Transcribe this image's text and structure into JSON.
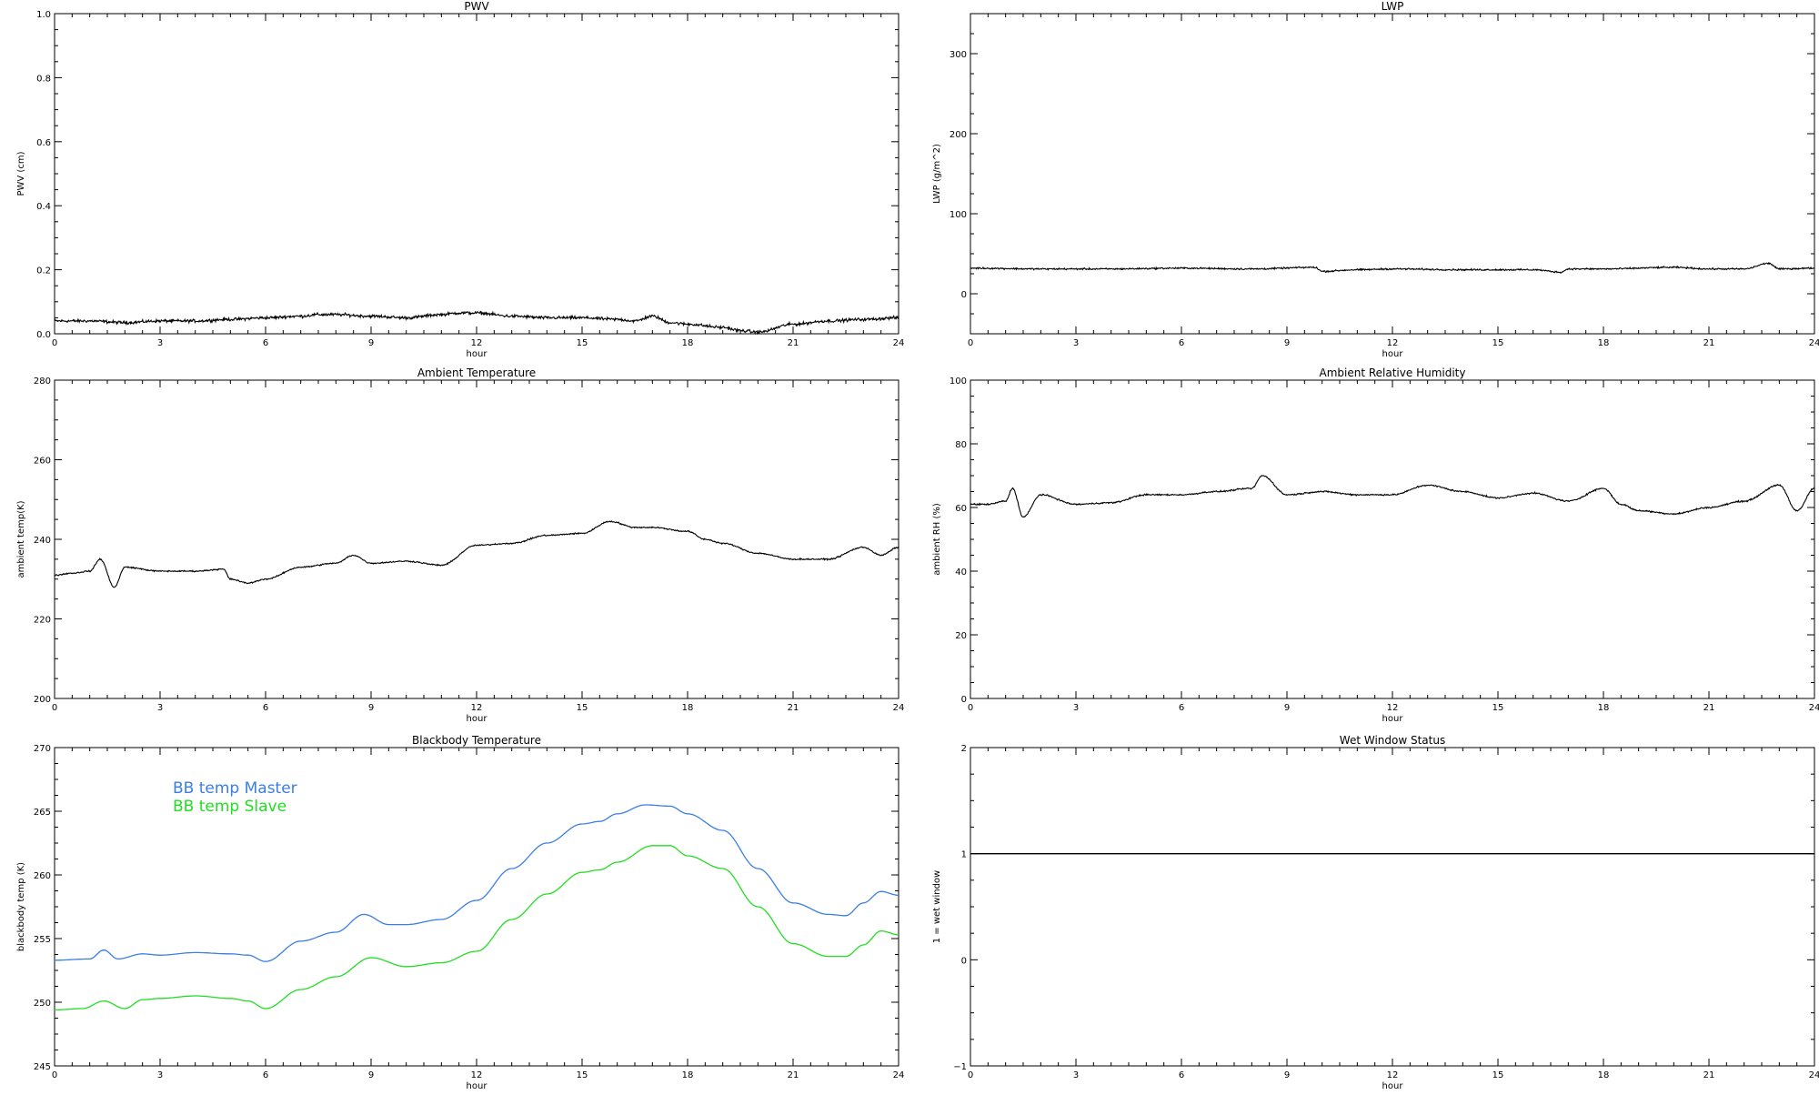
{
  "chart_data": [
    {
      "type": "line",
      "title": "PWV",
      "xlabel": "hour",
      "ylabel": "PWV (cm)",
      "xlim": [
        0,
        24
      ],
      "ylim": [
        0,
        1.0
      ],
      "xticks": [
        0,
        3,
        6,
        9,
        12,
        15,
        18,
        21,
        24
      ],
      "yticks": [
        0.0,
        0.2,
        0.4,
        0.6,
        0.8,
        1.0
      ],
      "ytick_labels": [
        "0.0",
        "0.2",
        "0.4",
        "0.6",
        "0.8",
        "1.0"
      ],
      "noise": 0.007,
      "series": [
        {
          "color": "#000000",
          "x": [
            0,
            1,
            2,
            3,
            4,
            5,
            6,
            7,
            7.5,
            8,
            9,
            10,
            11,
            11.5,
            12,
            13,
            14,
            15,
            16,
            16.5,
            17,
            17.5,
            18,
            19,
            19.5,
            20,
            21,
            22,
            23,
            24
          ],
          "y": [
            0.04,
            0.04,
            0.035,
            0.04,
            0.04,
            0.045,
            0.05,
            0.055,
            0.06,
            0.06,
            0.055,
            0.05,
            0.06,
            0.065,
            0.065,
            0.055,
            0.05,
            0.05,
            0.045,
            0.04,
            0.055,
            0.035,
            0.03,
            0.02,
            0.01,
            0.005,
            0.03,
            0.04,
            0.045,
            0.05
          ]
        }
      ]
    },
    {
      "type": "line",
      "title": "LWP",
      "xlabel": "hour",
      "ylabel": "LWP (g/m^2)",
      "xlim": [
        0,
        24
      ],
      "ylim": [
        -50,
        350
      ],
      "xticks": [
        0,
        3,
        6,
        9,
        12,
        15,
        18,
        21,
        24
      ],
      "yticks": [
        0,
        100,
        200,
        300
      ],
      "ytick_labels": [
        "0",
        "100",
        "200",
        "300"
      ],
      "noise": 1.5,
      "series": [
        {
          "color": "#000000",
          "x": [
            0,
            2,
            4,
            6,
            8,
            9.8,
            10,
            11,
            12,
            14,
            16,
            16.8,
            17,
            18,
            20,
            21,
            22,
            22.7,
            23,
            24
          ],
          "y": [
            32,
            31,
            31,
            32,
            31,
            33,
            28,
            30,
            31,
            30,
            30,
            27,
            31,
            31,
            33,
            31,
            31,
            38,
            31,
            32
          ]
        }
      ]
    },
    {
      "type": "line",
      "title": "Ambient Temperature",
      "xlabel": "hour",
      "ylabel": "ambient temp(K)",
      "xlim": [
        0,
        24
      ],
      "ylim": [
        200,
        280
      ],
      "xticks": [
        0,
        3,
        6,
        9,
        12,
        15,
        18,
        21,
        24
      ],
      "yticks": [
        200,
        220,
        240,
        260,
        280
      ],
      "ytick_labels": [
        "200",
        "220",
        "240",
        "260",
        "280"
      ],
      "noise": 0.25,
      "series": [
        {
          "color": "#000000",
          "x": [
            0,
            0.5,
            1,
            1.3,
            1.7,
            2,
            3,
            4,
            4.8,
            5,
            5.5,
            6,
            7,
            8,
            8.5,
            9,
            10,
            11,
            12,
            13,
            14,
            15,
            15.8,
            16.5,
            17,
            18,
            18.5,
            19,
            20,
            21,
            22,
            23,
            23.5,
            24
          ],
          "y": [
            231,
            231.5,
            232,
            235,
            228,
            233,
            232,
            232,
            232.5,
            230,
            229,
            230,
            233,
            234,
            236,
            234,
            234.5,
            233.5,
            238.5,
            239,
            241,
            241.5,
            244.5,
            243,
            243,
            242,
            240,
            239,
            236.5,
            235,
            235,
            238,
            236,
            238
          ]
        }
      ]
    },
    {
      "type": "line",
      "title": "Ambient Relative Humidity",
      "xlabel": "hour",
      "ylabel": "ambient RH (%)",
      "xlim": [
        0,
        24
      ],
      "ylim": [
        0,
        100
      ],
      "xticks": [
        0,
        3,
        6,
        9,
        12,
        15,
        18,
        21,
        24
      ],
      "yticks": [
        0,
        20,
        40,
        60,
        80,
        100
      ],
      "ytick_labels": [
        "0",
        "20",
        "40",
        "60",
        "80",
        "100"
      ],
      "noise": 0.35,
      "series": [
        {
          "color": "#000000",
          "x": [
            0,
            0.5,
            1,
            1.2,
            1.5,
            2,
            3,
            4,
            5,
            6,
            7,
            8,
            8.3,
            9,
            10,
            11,
            12,
            13,
            14,
            15,
            16,
            17,
            18,
            18.5,
            19,
            20,
            21,
            22,
            23,
            23.5,
            24
          ],
          "y": [
            61,
            61,
            62,
            66,
            57,
            64,
            61,
            61.5,
            64,
            64,
            65,
            66,
            70,
            64,
            65,
            64,
            64,
            67,
            65,
            63,
            64.5,
            62,
            66,
            61,
            59,
            58,
            60,
            62,
            67,
            59,
            66
          ]
        }
      ]
    },
    {
      "type": "line",
      "title": "Blackbody Temperature",
      "xlabel": "hour",
      "ylabel": "blackbody temp (K)",
      "xlim": [
        0,
        24
      ],
      "ylim": [
        245,
        270
      ],
      "xticks": [
        0,
        3,
        6,
        9,
        12,
        15,
        18,
        21,
        24
      ],
      "yticks": [
        245,
        250,
        255,
        260,
        265,
        270
      ],
      "ytick_labels": [
        "245",
        "250",
        "255",
        "260",
        "265",
        "270"
      ],
      "noise": 0,
      "legend": "top-left",
      "series": [
        {
          "name": "BB temp Master",
          "color": "#3a7ee6",
          "x": [
            0,
            1,
            1.4,
            1.8,
            2.5,
            3,
            4,
            5,
            5.5,
            6,
            7,
            8,
            8.8,
            9.5,
            10,
            11,
            12,
            13,
            14,
            15,
            15.5,
            16,
            16.8,
            17.5,
            18,
            19,
            20,
            21,
            22,
            22.5,
            23,
            23.5,
            24
          ],
          "y": [
            253.3,
            253.4,
            254.1,
            253.4,
            253.8,
            253.7,
            253.9,
            253.8,
            253.7,
            253.2,
            254.8,
            255.5,
            256.9,
            256.1,
            256.1,
            256.5,
            258.0,
            260.5,
            262.5,
            264.0,
            264.2,
            264.8,
            265.5,
            265.4,
            264.8,
            263.5,
            260.5,
            257.8,
            256.9,
            256.8,
            257.8,
            258.7,
            258.4
          ]
        },
        {
          "name": "BB temp Slave",
          "color": "#22dd22",
          "x": [
            0,
            0.8,
            1.4,
            2,
            2.5,
            3,
            4,
            5,
            5.5,
            6,
            7,
            8,
            9,
            10,
            11,
            12,
            13,
            14,
            15,
            15.5,
            16,
            17,
            17.5,
            18,
            19,
            20,
            21,
            22,
            22.5,
            23,
            23.5,
            24
          ],
          "y": [
            249.4,
            249.5,
            250.1,
            249.5,
            250.2,
            250.3,
            250.5,
            250.3,
            250.1,
            249.5,
            251.0,
            252.0,
            253.5,
            252.8,
            253.1,
            254.0,
            256.5,
            258.5,
            260.2,
            260.4,
            261.0,
            262.3,
            262.3,
            261.5,
            260.5,
            257.5,
            254.6,
            253.6,
            253.6,
            254.5,
            255.6,
            255.3
          ]
        }
      ]
    },
    {
      "type": "line",
      "title": "Wet Window Status",
      "xlabel": "hour",
      "ylabel": "1 = wet window",
      "xlim": [
        0,
        24
      ],
      "ylim": [
        -1,
        2
      ],
      "xticks": [
        0,
        3,
        6,
        9,
        12,
        15,
        18,
        21,
        24
      ],
      "yticks": [
        -1,
        0,
        1,
        2
      ],
      "ytick_labels": [
        "−1",
        "0",
        "1",
        "2"
      ],
      "noise": 0,
      "series": [
        {
          "color": "#000000",
          "x": [
            0,
            24
          ],
          "y": [
            1,
            1
          ]
        }
      ]
    }
  ]
}
